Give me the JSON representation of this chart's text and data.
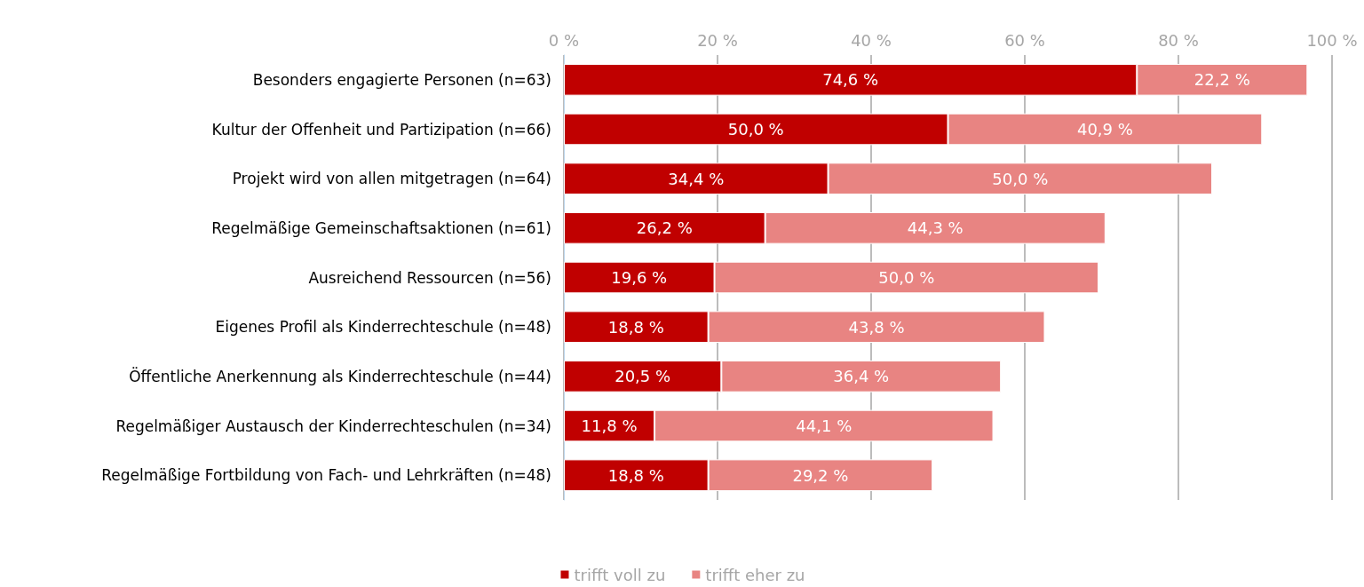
{
  "chart_data": {
    "type": "bar",
    "orientation": "horizontal",
    "stacked": true,
    "categories": [
      "Besonders engagierte Personen (n=63)",
      "Kultur der Offenheit und Partizipation (n=66)",
      "Projekt wird von allen mitgetragen (n=64)",
      "Regelmäßige Gemeinschaftsaktionen (n=61)",
      "Ausreichend Ressourcen (n=56)",
      "Eigenes Profil als Kinderrechteschule (n=48)",
      "Öffentliche Anerkennung als Kinderrechteschule (n=44)",
      "Regelmäßiger Austausch der Kinderrechteschulen (n=34)",
      "Regelmäßige Fortbildung von Fach- und Lehrkräften (n=48)"
    ],
    "series": [
      {
        "name": "trifft voll zu",
        "color": "#c00000",
        "values": [
          74.6,
          50.0,
          34.4,
          26.2,
          19.6,
          18.8,
          20.5,
          11.8,
          18.8
        ],
        "value_labels": [
          "74,6 %",
          "50,0 %",
          "34,4 %",
          "26,2 %",
          "19,6 %",
          "18,8 %",
          "20,5 %",
          "11,8 %",
          "18,8 %"
        ]
      },
      {
        "name": "trifft eher zu",
        "color": "#e88482",
        "values": [
          22.2,
          40.9,
          50.0,
          44.3,
          50.0,
          43.8,
          36.4,
          44.1,
          29.2
        ],
        "value_labels": [
          "22,2 %",
          "40,9 %",
          "50,0 %",
          "44,3 %",
          "50,0 %",
          "43,8 %",
          "36,4 %",
          "44,1 %",
          "29,2 %"
        ]
      }
    ],
    "xlim": [
      0,
      100
    ],
    "xticks": [
      {
        "value": 0,
        "label": "0 %"
      },
      {
        "value": 20,
        "label": "20 %"
      },
      {
        "value": 40,
        "label": "40 %"
      },
      {
        "value": 60,
        "label": "60 %"
      },
      {
        "value": 80,
        "label": "80 %"
      },
      {
        "value": 100,
        "label": "100 %"
      }
    ],
    "grid": "x",
    "legend": "bottom"
  }
}
